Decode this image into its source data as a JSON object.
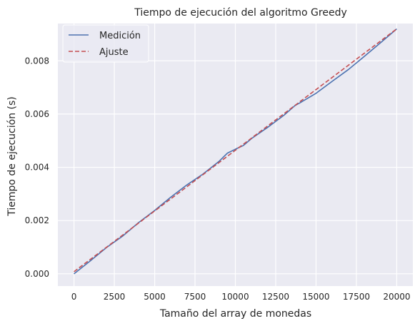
{
  "chart_data": {
    "type": "line",
    "title": "Tiempo de ejecución del algoritmo Greedy",
    "xlabel": "Tamaño del array de monedas",
    "ylabel": "Tiempo de ejecución (s)",
    "xlim": [
      -1000,
      21000
    ],
    "ylim": [
      -0.00046,
      0.0094
    ],
    "xticks": [
      0,
      2500,
      5000,
      7500,
      10000,
      12500,
      15000,
      17500,
      20000
    ],
    "xtick_labels": [
      "0",
      "2500",
      "5000",
      "7500",
      "10000",
      "12500",
      "15000",
      "17500",
      "20000"
    ],
    "yticks": [
      0.0,
      0.002,
      0.004,
      0.006,
      0.008
    ],
    "ytick_labels": [
      "0.000",
      "0.002",
      "0.004",
      "0.006",
      "0.008"
    ],
    "grid": true,
    "legend_position": "top-left",
    "series": [
      {
        "name": "Medición",
        "color": "#4c72b0",
        "style": "solid",
        "x": [
          0,
          1000,
          2000,
          3000,
          4000,
          5000,
          6000,
          7000,
          8000,
          9000,
          9500,
          10000,
          10500,
          11000,
          12000,
          13000,
          13700,
          14000,
          15000,
          16000,
          17000,
          18000,
          19000,
          20000
        ],
        "y": [
          0.0,
          0.00048,
          0.00098,
          0.00141,
          0.00192,
          0.00238,
          0.00288,
          0.00334,
          0.00375,
          0.00423,
          0.00453,
          0.00468,
          0.00482,
          0.00508,
          0.0055,
          0.00595,
          0.00632,
          0.00642,
          0.00678,
          0.00723,
          0.00767,
          0.00817,
          0.00868,
          0.0092
        ]
      },
      {
        "name": "Ajuste",
        "color": "#c44e52",
        "style": "dashed",
        "x": [
          0,
          20000
        ],
        "y": [
          8e-05,
          0.0092
        ]
      }
    ]
  }
}
